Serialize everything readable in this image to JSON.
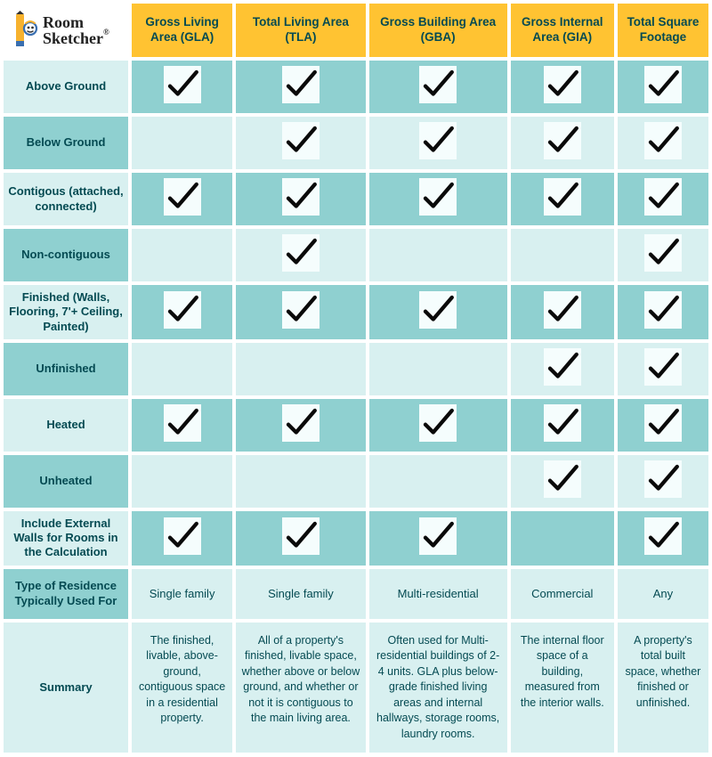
{
  "logo": {
    "line1": "Room",
    "line2": "Sketcher",
    "reg": "®"
  },
  "columns": [
    {
      "label": "Gross Living Area (GLA)"
    },
    {
      "label": "Total Living Area (TLA)"
    },
    {
      "label": "Gross Building Area (GBA)"
    },
    {
      "label": "Gross Internal Area (GIA)"
    },
    {
      "label": "Total Square Footage"
    }
  ],
  "featureRows": [
    {
      "label": "Above Ground",
      "checks": [
        true,
        true,
        true,
        true,
        true
      ]
    },
    {
      "label": "Below Ground",
      "checks": [
        false,
        true,
        true,
        true,
        true
      ]
    },
    {
      "label": "Contigous (attached, connected)",
      "checks": [
        true,
        true,
        true,
        true,
        true
      ]
    },
    {
      "label": "Non-contiguous",
      "checks": [
        false,
        true,
        false,
        false,
        true
      ]
    },
    {
      "label": "Finished (Walls, Flooring, 7'+ Ceiling, Painted)",
      "checks": [
        true,
        true,
        true,
        true,
        true
      ]
    },
    {
      "label": "Unfinished",
      "checks": [
        false,
        false,
        false,
        true,
        true
      ]
    },
    {
      "label": "Heated",
      "checks": [
        true,
        true,
        true,
        true,
        true
      ]
    },
    {
      "label": "Unheated",
      "checks": [
        false,
        false,
        false,
        true,
        true
      ]
    },
    {
      "label": "Include External Walls for Rooms in the Calculation",
      "checks": [
        true,
        true,
        true,
        false,
        true
      ]
    }
  ],
  "residenceRow": {
    "label": "Type of Residence Typically Used For",
    "values": [
      "Single family",
      "Single family",
      "Multi-residential",
      "Commercial",
      "Any"
    ]
  },
  "summaryRow": {
    "label": "Summary",
    "values": [
      "The finished, livable, above-ground, contiguous space in a residential property.",
      "All of a property's finished, livable space, whether above or below ground, and whether or not it is contiguous to the main living area.",
      "Often used for Multi-residential buildings of 2-4 units. GLA plus below-grade finished living areas and internal hallways, storage rooms, laundry rooms.",
      "The internal floor space of a building, measured from the interior walls.",
      "A property's total built space, whether finished or unfinished."
    ]
  },
  "style": {
    "headerBg": "#ffc332",
    "rowLabelLight": "#d8f0f0",
    "rowLabelDark": "#8fd0d0",
    "dataLight": "#8fd0d0",
    "dataDark": "#d8f0f0",
    "checkBoxBg": "#f5fdfd",
    "checkStroke": "#0a0a0a",
    "textColor": "#044a52",
    "summaryLabelBg": "#d8f0f0",
    "summaryDataBg": "#d8f0f0"
  }
}
